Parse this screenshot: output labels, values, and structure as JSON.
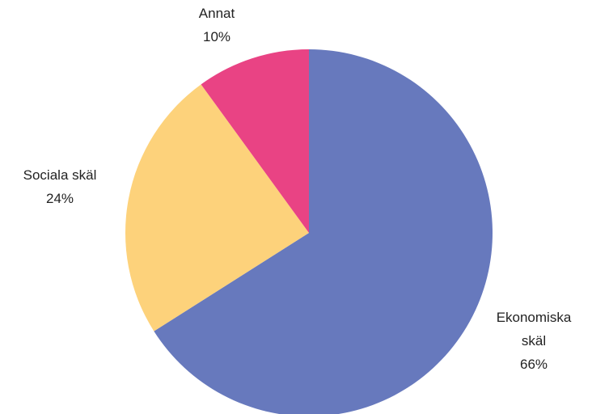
{
  "chart_data": {
    "type": "pie",
    "categories": [
      "Ekonomiska skäl",
      "Sociala skäl",
      "Annat"
    ],
    "values": [
      66,
      24,
      10
    ],
    "value_labels": [
      "66%",
      "24%",
      "10%"
    ],
    "colors": [
      "#6779bd",
      "#fdd27b",
      "#e94384"
    ]
  }
}
